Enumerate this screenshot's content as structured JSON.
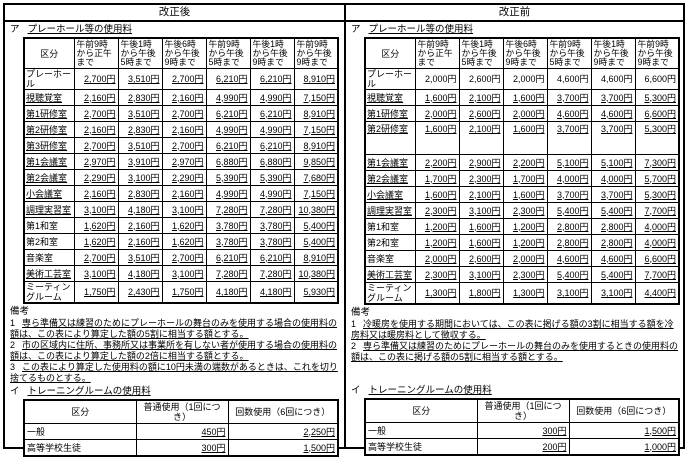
{
  "panels": [
    {
      "title": "改正後",
      "section_a_prefix": "ア",
      "section_a_heading": "プレーホール等の使用料",
      "fee_table": {
        "corner": "区分",
        "columns": [
          "午前9時\nから正午\nまで",
          "午後1時\nから午後\n5時まで",
          "午後6時\nから午後\n9時まで",
          "午前9時\nから午後\n5時まで",
          "午後1時\nから午後\n9時まで",
          "午前9時\nから午後\n9時まで"
        ],
        "rows": [
          {
            "label": "プレーホール",
            "lu": false,
            "vu": true,
            "values": [
              "2,700円",
              "3,510円",
              "2,700円",
              "6,210円",
              "6,210円",
              "8,910円"
            ]
          },
          {
            "label": "視聴覚室",
            "lu": true,
            "vu": true,
            "values": [
              "2,160円",
              "2,830円",
              "2,160円",
              "4,990円",
              "4,990円",
              "7,150円"
            ]
          },
          {
            "label": "第1研修室",
            "lu": true,
            "vu": true,
            "values": [
              "2,700円",
              "3,510円",
              "2,700円",
              "6,210円",
              "6,210円",
              "8,910円"
            ]
          },
          {
            "label": "第2研修室",
            "lu": true,
            "vu": true,
            "values": [
              "2,160円",
              "2,830円",
              "2,160円",
              "4,990円",
              "4,990円",
              "7,150円"
            ]
          },
          {
            "label": "第3研修室",
            "lu": true,
            "vu": true,
            "values": [
              "2,700円",
              "3,510円",
              "2,700円",
              "6,210円",
              "6,210円",
              "8,910円"
            ]
          },
          {
            "label": "第1会議室",
            "lu": true,
            "vu": true,
            "values": [
              "2,970円",
              "3,910円",
              "2,970円",
              "6,880円",
              "6,880円",
              "9,850円"
            ]
          },
          {
            "label": "第2会議室",
            "lu": true,
            "vu": true,
            "values": [
              "2,290円",
              "3,100円",
              "2,290円",
              "5,390円",
              "5,390円",
              "7,680円"
            ]
          },
          {
            "label": "小会議室",
            "lu": true,
            "vu": true,
            "values": [
              "2,160円",
              "2,830円",
              "2,160円",
              "4,990円",
              "4,990円",
              "7,150円"
            ]
          },
          {
            "label": "調理実習室",
            "lu": true,
            "vu": true,
            "values": [
              "3,100円",
              "4,180円",
              "3,100円",
              "7,280円",
              "7,280円",
              "10,380円"
            ]
          },
          {
            "label": "第1和室",
            "lu": false,
            "vu": true,
            "values": [
              "1,620円",
              "2,160円",
              "1,620円",
              "3,780円",
              "3,780円",
              "5,400円"
            ]
          },
          {
            "label": "第2和室",
            "lu": false,
            "vu": true,
            "values": [
              "1,620円",
              "2,160円",
              "1,620円",
              "3,780円",
              "3,780円",
              "5,400円"
            ]
          },
          {
            "label": "音楽室",
            "lu": false,
            "vu": true,
            "values": [
              "2,700円",
              "3,510円",
              "2,700円",
              "6,210円",
              "6,210円",
              "8,910円"
            ]
          },
          {
            "label": "美術工芸室",
            "lu": true,
            "vu": true,
            "values": [
              "3,100円",
              "4,180円",
              "3,100円",
              "7,280円",
              "7,280円",
              "10,380円"
            ]
          },
          {
            "label": "ミーティングルーム",
            "lu": false,
            "vu": true,
            "values": [
              "1,750円",
              "2,430円",
              "1,750円",
              "4,180円",
              "4,180円",
              "5,930円"
            ]
          }
        ]
      },
      "remarks_title": "備考",
      "remarks": [
        {
          "num": "1",
          "text": "専ら準備又は練習のためにプレーホールの舞台のみを使用する場合の使用料の額は、この表により算定した額の5割に相当する額とする。"
        },
        {
          "num": "2",
          "text": "市の区域内に住所、事務所又は事業所を有しない者が使用する場合の使用料の額は、この表により算定した額の2倍に相当する額とする。"
        },
        {
          "num": "3",
          "text": "この表により算定した使用料の額に10円未満の端数があるときは、これを切り捨てるものとする。"
        }
      ],
      "section_b_prefix": "イ",
      "section_b_heading": "トレーニングルームの使用料",
      "training_table": {
        "corner": "区分",
        "columns": [
          "普通使用（1回につき）",
          "回数使用（6回につき）"
        ],
        "rows": [
          {
            "label": "一般",
            "lu": false,
            "vu": true,
            "values": [
              "450円",
              "2,250円"
            ]
          },
          {
            "label": "高等学校生徒",
            "lu": false,
            "vu": true,
            "values": [
              "300円",
              "1,500円"
            ]
          }
        ]
      }
    },
    {
      "title": "改正前",
      "section_a_prefix": "ア",
      "section_a_heading": "プレーホール等の使用料",
      "fee_table": {
        "corner": "区分",
        "columns": [
          "午前9時\nから正午\nまで",
          "午後1時\nから午後\n5時まで",
          "午後6時\nから午後\n9時まで",
          "午前9時\nから午後\n5時まで",
          "午後1時\nから午後\n9時まで",
          "午前9時\nから午後\n9時まで"
        ],
        "rows": [
          {
            "label": "プレーホール",
            "lu": false,
            "vu": false,
            "values": [
              "2,000円",
              "2,600円",
              "2,000円",
              "4,600円",
              "4,600円",
              "6,600円"
            ]
          },
          {
            "label": "視聴覚室",
            "lu": true,
            "vu": true,
            "values": [
              "1,600円",
              "2,100円",
              "1,600円",
              "3,700円",
              "3,700円",
              "5,300円"
            ]
          },
          {
            "label": "第1研修室",
            "lu": true,
            "vu": true,
            "values": [
              "2,000円",
              "2,600円",
              "2,000円",
              "4,600円",
              "4,600円",
              "6,600円"
            ]
          },
          {
            "label": "第2研修室",
            "lu": true,
            "vu": true,
            "tall": true,
            "values": [
              "1,600円",
              "2,100円",
              "1,600円",
              "3,700円",
              "3,700円",
              "5,300円"
            ]
          },
          {
            "label": "第1会議室",
            "lu": true,
            "vu": true,
            "values": [
              "2,200円",
              "2,900円",
              "2,200円",
              "5,100円",
              "5,100円",
              "7,300円"
            ]
          },
          {
            "label": "第2会議室",
            "lu": true,
            "vu": true,
            "values": [
              "1,700円",
              "2,300円",
              "1,700円",
              "4,000円",
              "4,000円",
              "5,700円"
            ]
          },
          {
            "label": "小会議室",
            "lu": true,
            "vu": true,
            "values": [
              "1,600円",
              "2,100円",
              "1,600円",
              "3,700円",
              "3,700円",
              "5,300円"
            ]
          },
          {
            "label": "調理実習室",
            "lu": true,
            "vu": true,
            "values": [
              "2,300円",
              "3,100円",
              "2,300円",
              "5,400円",
              "5,400円",
              "7,700円"
            ]
          },
          {
            "label": "第1和室",
            "lu": false,
            "vu": true,
            "values": [
              "1,200円",
              "1,600円",
              "1,200円",
              "2,800円",
              "2,800円",
              "4,000円"
            ]
          },
          {
            "label": "第2和室",
            "lu": false,
            "vu": true,
            "values": [
              "1,200円",
              "1,600円",
              "1,200円",
              "2,800円",
              "2,800円",
              "4,000円"
            ]
          },
          {
            "label": "音楽室",
            "lu": false,
            "vu": true,
            "values": [
              "2,000円",
              "2,600円",
              "2,000円",
              "4,600円",
              "4,600円",
              "6,600円"
            ]
          },
          {
            "label": "美術工芸室",
            "lu": true,
            "vu": true,
            "values": [
              "2,300円",
              "3,100円",
              "2,300円",
              "5,400円",
              "5,400円",
              "7,700円"
            ]
          },
          {
            "label": "ミーティングルーム",
            "lu": false,
            "vu": true,
            "values": [
              "1,300円",
              "1,800円",
              "1,300円",
              "3,100円",
              "3,100円",
              "4,400円"
            ]
          }
        ]
      },
      "remarks_title": "備考",
      "remarks": [
        {
          "num": "1",
          "text": "冷暖房を使用する期間においては、この表に掲げる額の3割に相当する額を冷房料又は暖房料として徴収する。"
        },
        {
          "num": "2",
          "text": "専ら準備又は練習のためにプレーホールの舞台のみを使用するときの使用料の額は、この表に掲げる額の5割に相当する額とする。"
        }
      ],
      "section_b_prefix": "イ",
      "section_b_heading": "トレーニングルームの使用料",
      "training_table": {
        "corner": "区分",
        "columns": [
          "普通使用（1回につき）",
          "回数使用（6回につき）"
        ],
        "rows": [
          {
            "label": "一般",
            "lu": false,
            "vu": true,
            "values": [
              "300円",
              "1,500円"
            ]
          },
          {
            "label": "高等学校生徒",
            "lu": false,
            "vu": true,
            "values": [
              "200円",
              "1,000円"
            ]
          }
        ]
      }
    }
  ]
}
